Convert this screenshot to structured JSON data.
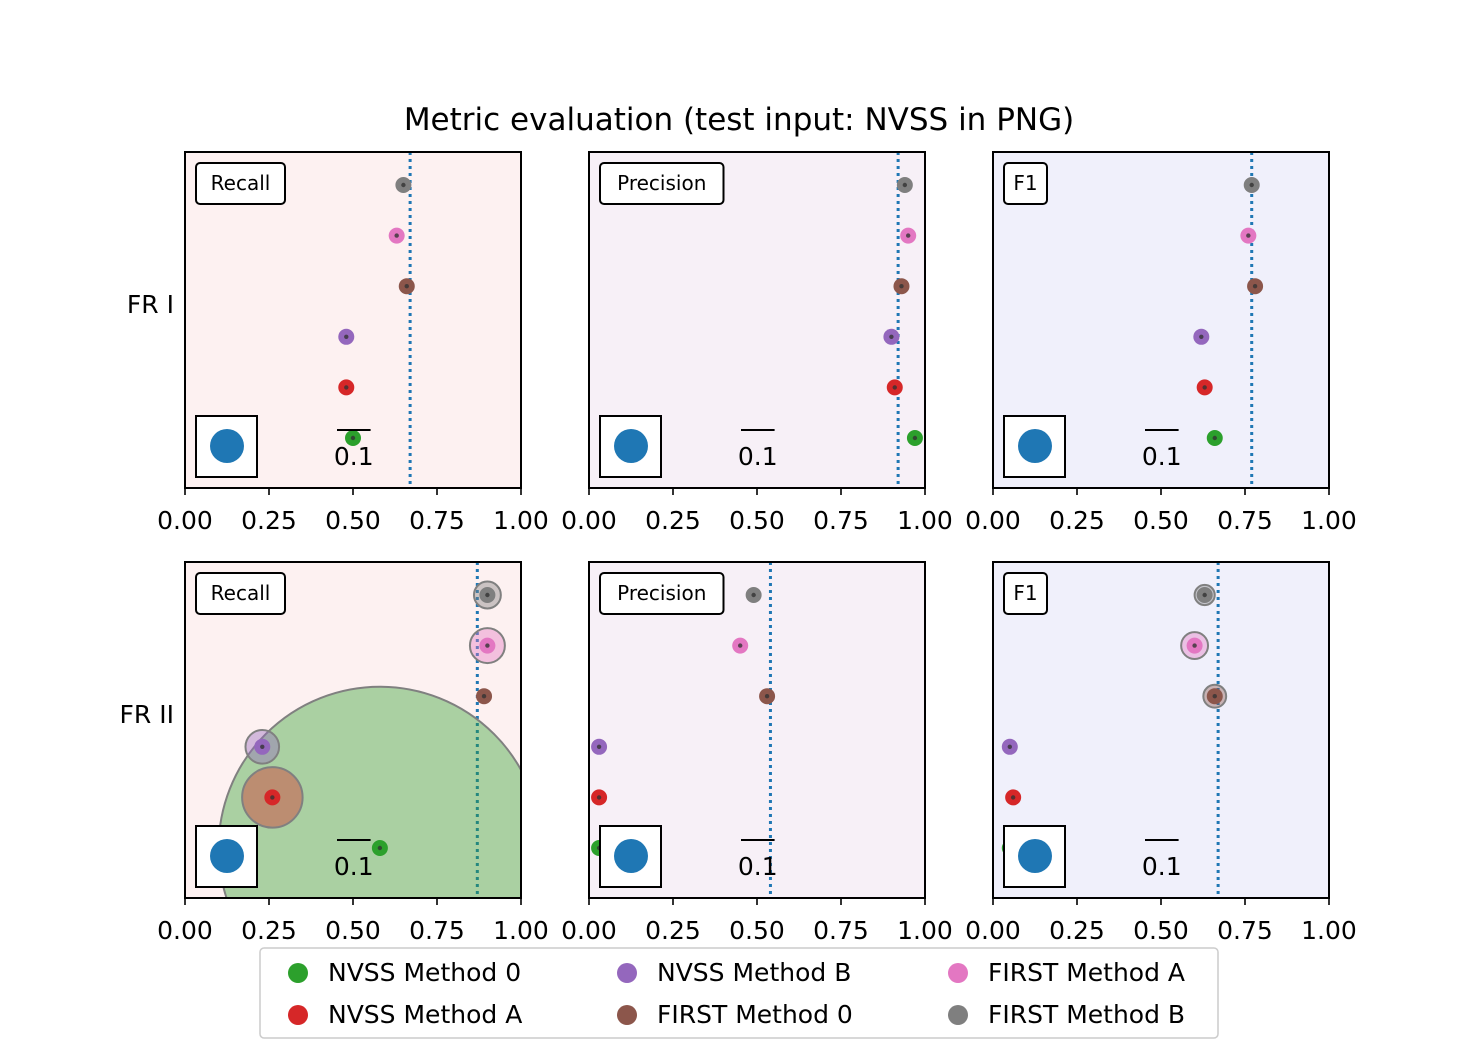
{
  "title": "Metric evaluation (test input: NVSS in PNG)",
  "colors": {
    "recall_bg": "#fdf1f1",
    "precision_bg": "#f7f0f7",
    "f1_bg": "#f0f0fb",
    "reference_line": "#1f77b4",
    "scale_marker": "#1f77b4",
    "error_ring": "#808080"
  },
  "rows": [
    "FR I",
    "FR II"
  ],
  "columns": [
    "Recall",
    "Precision",
    "F1"
  ],
  "legend": [
    {
      "label": "NVSS Method 0",
      "color": "#2ca02c"
    },
    {
      "label": "NVSS Method A",
      "color": "#d62728"
    },
    {
      "label": "NVSS Method B",
      "color": "#9467bd"
    },
    {
      "label": "FIRST Method 0",
      "color": "#8c564b"
    },
    {
      "label": "FIRST Method A",
      "color": "#e377c2"
    },
    {
      "label": "FIRST Method B",
      "color": "#7f7f7f"
    }
  ],
  "chart_data": [
    {
      "type": "scatter",
      "row": "FR I",
      "metric": "Recall",
      "xlim": [
        0,
        1
      ],
      "xticks": [
        "0.00",
        "0.25",
        "0.50",
        "0.75",
        "1.00"
      ],
      "reference": 0.67,
      "scale_label": "0.1",
      "scale_value": 0.1,
      "points": [
        {
          "method": "NVSS Method 0",
          "value": 0.5,
          "uncertainty": 0.005
        },
        {
          "method": "NVSS Method A",
          "value": 0.48,
          "uncertainty": 0.003
        },
        {
          "method": "NVSS Method B",
          "value": 0.48,
          "uncertainty": 0.007
        },
        {
          "method": "FIRST Method 0",
          "value": 0.66,
          "uncertainty": 0.008
        },
        {
          "method": "FIRST Method A",
          "value": 0.63,
          "uncertainty": 0.007
        },
        {
          "method": "FIRST Method B",
          "value": 0.65,
          "uncertainty": 0.009
        }
      ]
    },
    {
      "type": "scatter",
      "row": "FR I",
      "metric": "Precision",
      "xlim": [
        0,
        1
      ],
      "xticks": [
        "0.00",
        "0.25",
        "0.50",
        "0.75",
        "1.00"
      ],
      "reference": 0.92,
      "scale_label": "0.1",
      "scale_value": 0.1,
      "points": [
        {
          "method": "NVSS Method 0",
          "value": 0.97,
          "uncertainty": 0.006
        },
        {
          "method": "NVSS Method A",
          "value": 0.91,
          "uncertainty": 0.005
        },
        {
          "method": "NVSS Method B",
          "value": 0.9,
          "uncertainty": 0.009
        },
        {
          "method": "FIRST Method 0",
          "value": 0.93,
          "uncertainty": 0.008
        },
        {
          "method": "FIRST Method A",
          "value": 0.95,
          "uncertainty": 0.006
        },
        {
          "method": "FIRST Method B",
          "value": 0.94,
          "uncertainty": 0.007
        }
      ]
    },
    {
      "type": "scatter",
      "row": "FR I",
      "metric": "F1",
      "xlim": [
        0,
        1
      ],
      "xticks": [
        "0.00",
        "0.25",
        "0.50",
        "0.75",
        "1.00"
      ],
      "reference": 0.77,
      "scale_label": "0.1",
      "scale_value": 0.1,
      "points": [
        {
          "method": "NVSS Method 0",
          "value": 0.66,
          "uncertainty": 0.005
        },
        {
          "method": "NVSS Method A",
          "value": 0.63,
          "uncertainty": 0.004
        },
        {
          "method": "NVSS Method B",
          "value": 0.62,
          "uncertainty": 0.008
        },
        {
          "method": "FIRST Method 0",
          "value": 0.78,
          "uncertainty": 0.009
        },
        {
          "method": "FIRST Method A",
          "value": 0.76,
          "uncertainty": 0.008
        },
        {
          "method": "FIRST Method B",
          "value": 0.77,
          "uncertainty": 0.007
        }
      ]
    },
    {
      "type": "scatter",
      "row": "FR II",
      "metric": "Recall",
      "xlim": [
        0,
        1
      ],
      "xticks": [
        "0.00",
        "0.25",
        "0.50",
        "0.75",
        "1.00"
      ],
      "reference": 0.87,
      "scale_label": "0.1",
      "scale_value": 0.1,
      "points": [
        {
          "method": "NVSS Method 0",
          "value": 0.58,
          "uncertainty": 0.24
        },
        {
          "method": "NVSS Method A",
          "value": 0.26,
          "uncertainty": 0.045
        },
        {
          "method": "NVSS Method B",
          "value": 0.23,
          "uncertainty": 0.025
        },
        {
          "method": "FIRST Method 0",
          "value": 0.89,
          "uncertainty": 0.01
        },
        {
          "method": "FIRST Method A",
          "value": 0.9,
          "uncertainty": 0.026
        },
        {
          "method": "FIRST Method B",
          "value": 0.9,
          "uncertainty": 0.02
        }
      ]
    },
    {
      "type": "scatter",
      "row": "FR II",
      "metric": "Precision",
      "xlim": [
        0,
        1
      ],
      "xticks": [
        "0.00",
        "0.25",
        "0.50",
        "0.75",
        "1.00"
      ],
      "reference": 0.54,
      "scale_label": "0.1",
      "scale_value": 0.1,
      "points": [
        {
          "method": "NVSS Method 0",
          "value": 0.03,
          "uncertainty": 0.006
        },
        {
          "method": "NVSS Method A",
          "value": 0.03,
          "uncertainty": 0.008
        },
        {
          "method": "NVSS Method B",
          "value": 0.03,
          "uncertainty": 0.008
        },
        {
          "method": "FIRST Method 0",
          "value": 0.53,
          "uncertainty": 0.009
        },
        {
          "method": "FIRST Method A",
          "value": 0.45,
          "uncertainty": 0.009
        },
        {
          "method": "FIRST Method B",
          "value": 0.49,
          "uncertainty": 0.008
        }
      ]
    },
    {
      "type": "scatter",
      "row": "FR II",
      "metric": "F1",
      "xlim": [
        0,
        1
      ],
      "xticks": [
        "0.00",
        "0.25",
        "0.50",
        "0.75",
        "1.00"
      ],
      "reference": 0.67,
      "scale_label": "0.1",
      "scale_value": 0.1,
      "points": [
        {
          "method": "NVSS Method 0",
          "value": 0.05,
          "uncertainty": 0.006
        },
        {
          "method": "NVSS Method A",
          "value": 0.06,
          "uncertainty": 0.009
        },
        {
          "method": "NVSS Method B",
          "value": 0.05,
          "uncertainty": 0.009
        },
        {
          "method": "FIRST Method 0",
          "value": 0.66,
          "uncertainty": 0.017
        },
        {
          "method": "FIRST Method A",
          "value": 0.6,
          "uncertainty": 0.02
        },
        {
          "method": "FIRST Method B",
          "value": 0.63,
          "uncertainty": 0.015
        }
      ]
    }
  ]
}
